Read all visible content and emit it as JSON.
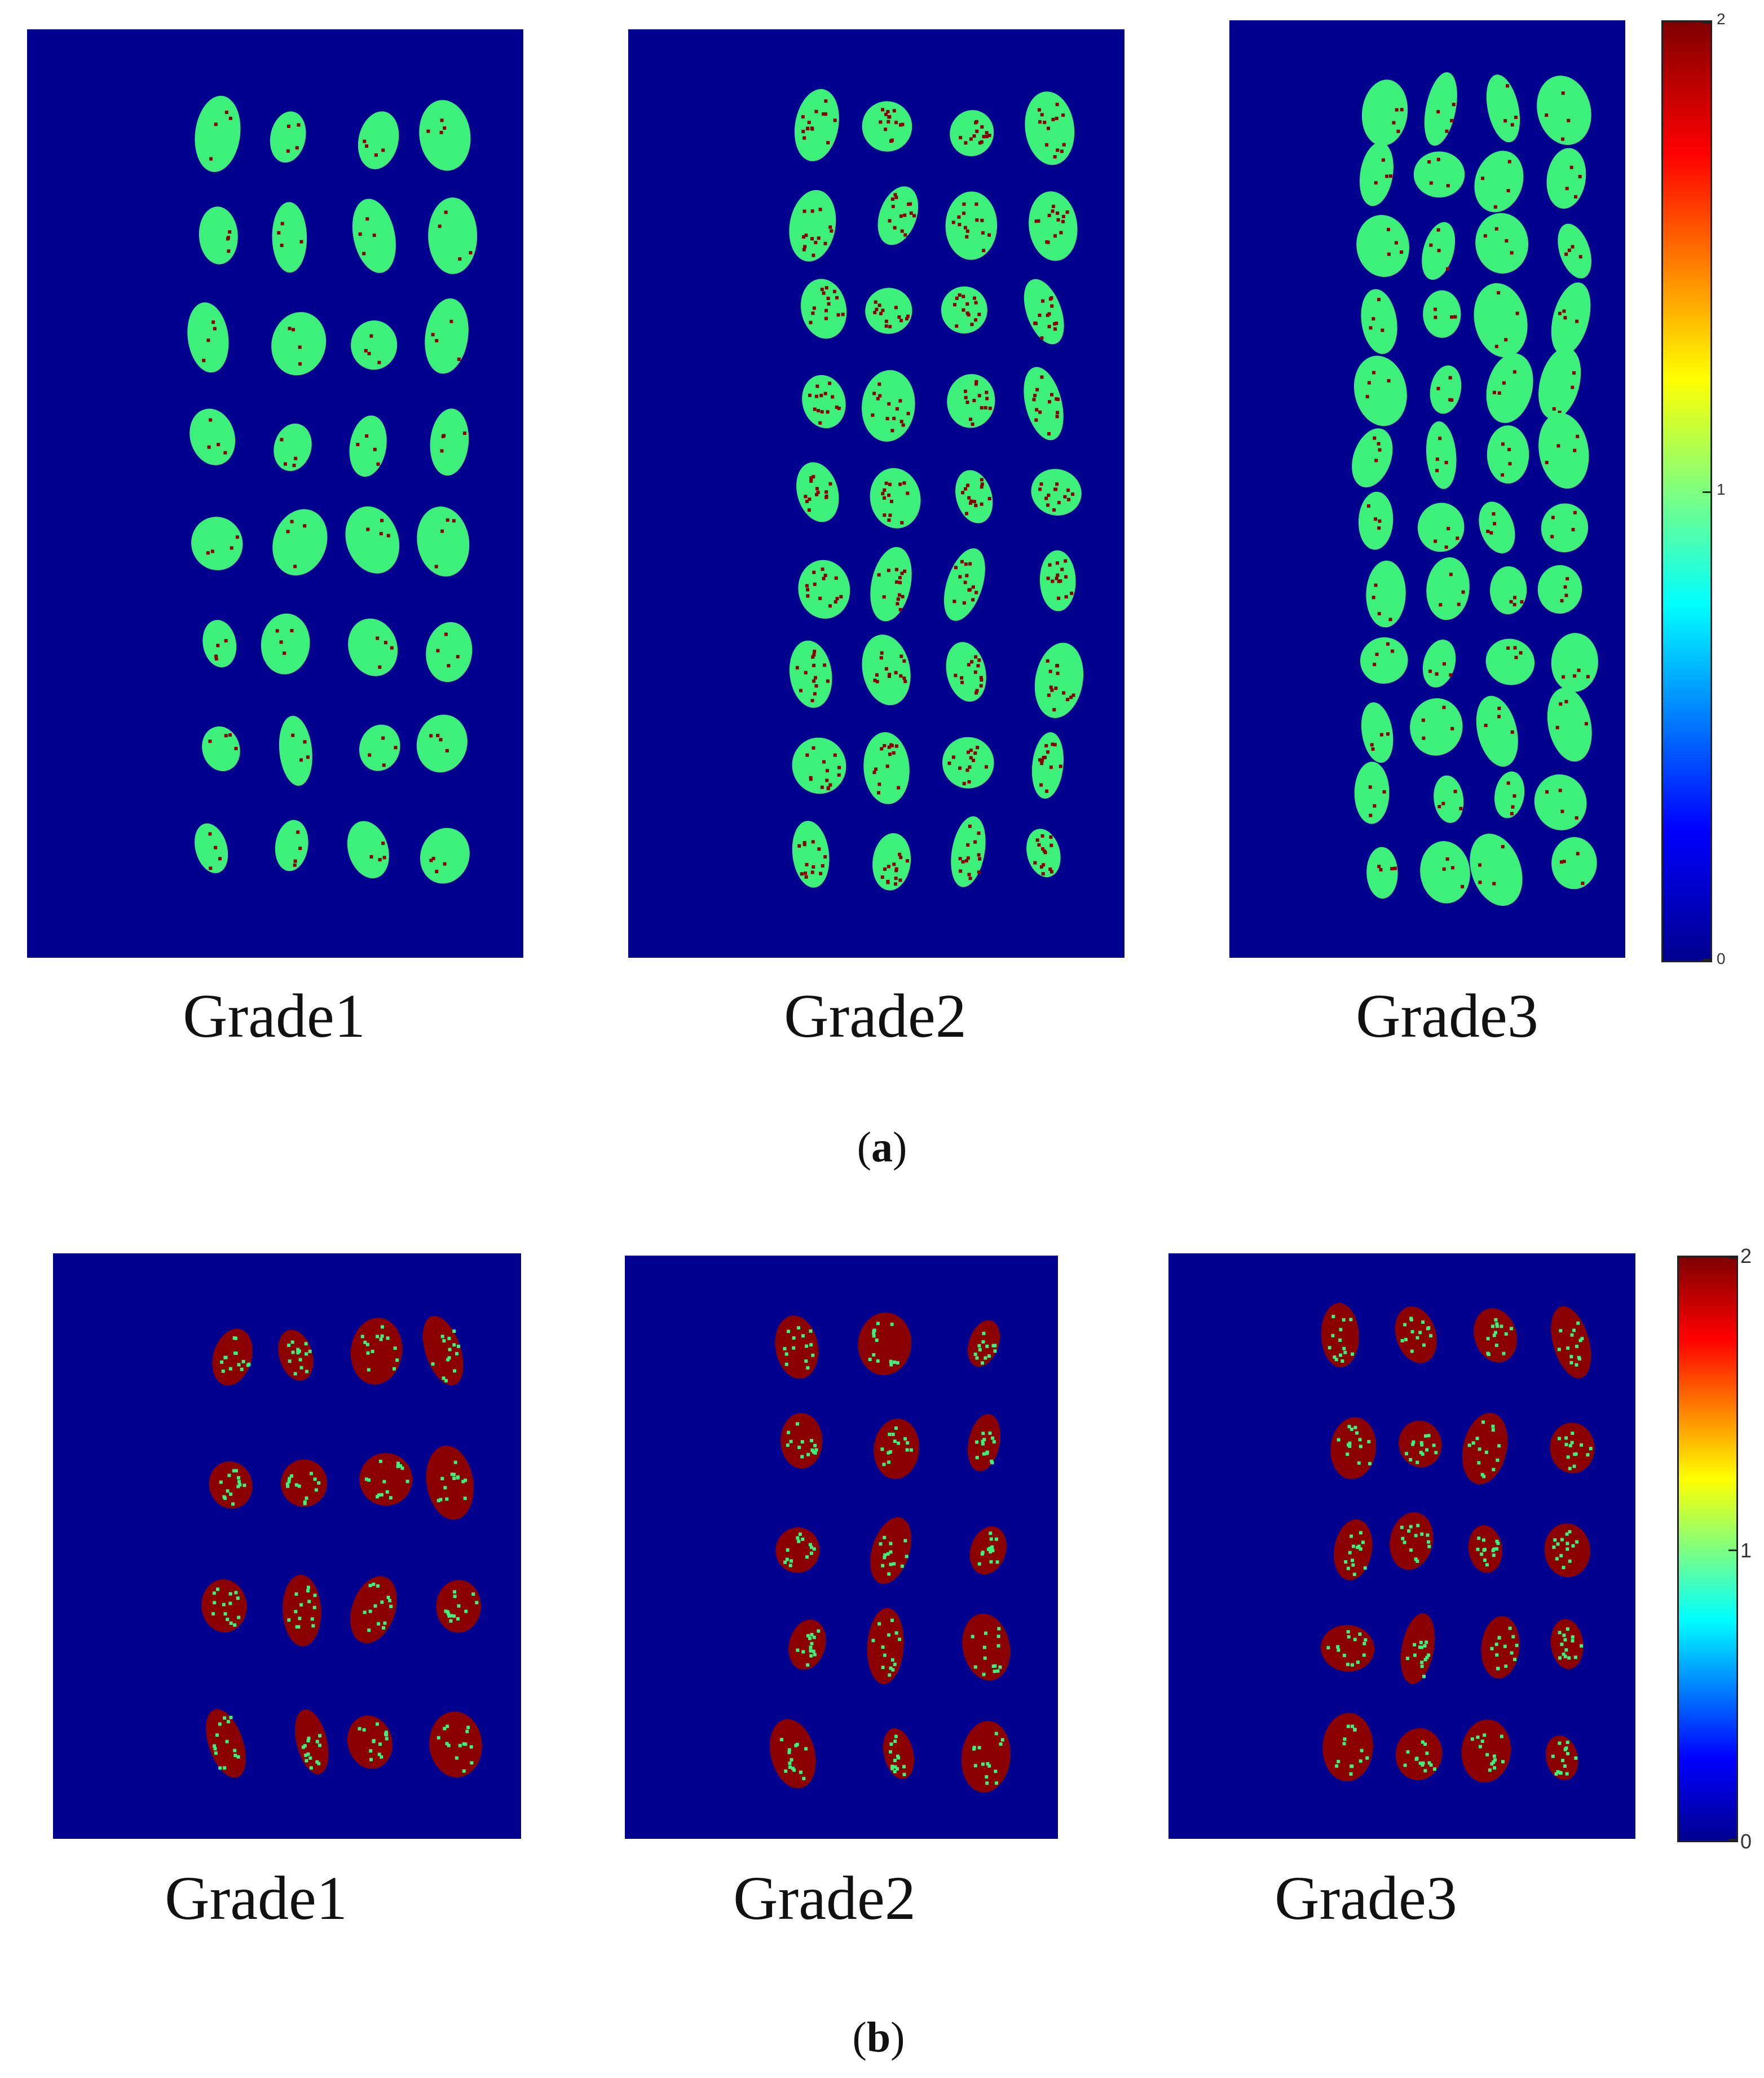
{
  "colors": {
    "background": "#00008f",
    "grain_green": "#3df07a",
    "grain_red": "#8b0000"
  },
  "figure_a": {
    "subcaption": "a",
    "panels": [
      {
        "label": "Grade1",
        "dominant": "green"
      },
      {
        "label": "Grade2",
        "dominant": "green_red"
      },
      {
        "label": "Grade3",
        "dominant": "green"
      }
    ],
    "colorbar": {
      "ticks": [
        "2",
        "1",
        "0"
      ]
    }
  },
  "figure_b": {
    "subcaption": "b",
    "panels": [
      {
        "label": "Grade1",
        "dominant": "red"
      },
      {
        "label": "Grade2",
        "dominant": "red"
      },
      {
        "label": "Grade3",
        "dominant": "red"
      }
    ],
    "colorbar": {
      "ticks": [
        "2",
        "1",
        "0"
      ]
    }
  }
}
